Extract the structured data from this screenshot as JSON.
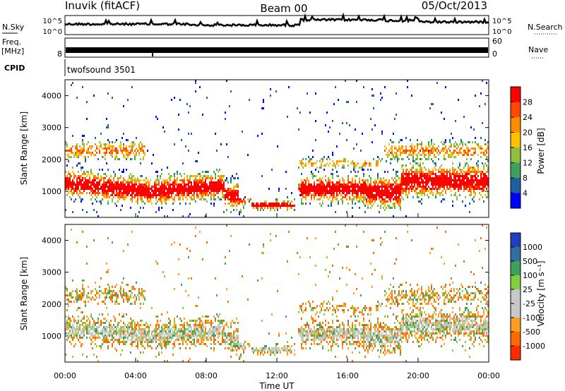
{
  "header": {
    "station": "Inuvik (fitACF)",
    "beam": "Beam 00",
    "date": "05/Oct/2013"
  },
  "top_panels": {
    "nsky": {
      "label": "N.Sky",
      "ticks": [
        "10^5",
        "10^0"
      ]
    },
    "nsearch": {
      "label": "N.Search",
      "ticks": [
        "10^5",
        "10^0"
      ]
    },
    "freq": {
      "label_line1": "Freq.",
      "label_line2": "[MHz]",
      "ticks": [
        "8"
      ]
    },
    "nave": {
      "label": "Nave",
      "ticks": [
        "60",
        "0"
      ]
    },
    "cpid": {
      "label": "CPID",
      "value": "twofsound 3501"
    }
  },
  "chart_data": [
    {
      "type": "heatmap",
      "name": "power",
      "ylabel": "Slant Range [km]",
      "xlabel": "",
      "ylim": [
        180,
        4500
      ],
      "yticks": [
        "1000",
        "2000",
        "3000",
        "4000"
      ],
      "colorbar": {
        "label": "Power [dB]",
        "ticks": [
          "28",
          "24",
          "20",
          "16",
          "12",
          "8",
          "4"
        ],
        "colors": [
          "#ff0000",
          "#ff4a00",
          "#ff8c00",
          "#ffc000",
          "#8fbf3f",
          "#3f9f5f",
          "#1f5f9f",
          "#0000ff"
        ]
      },
      "bands_km": [
        [
          600,
          1800
        ],
        [
          1700,
          2600
        ]
      ]
    },
    {
      "type": "heatmap",
      "name": "velocity",
      "ylabel": "Slant Range [km]",
      "xlabel": "Time UT",
      "ylim": [
        180,
        4500
      ],
      "yticks": [
        "1000",
        "2000",
        "3000",
        "4000"
      ],
      "xticks": [
        "00:00",
        "04:00",
        "08:00",
        "12:00",
        "16:00",
        "20:00",
        "00:00"
      ],
      "colorbar": {
        "label": "Velocity [m s⁻¹]",
        "ticks": [
          "1000",
          "500",
          "100",
          "25",
          "-25",
          "-100",
          "-500",
          "-1000"
        ],
        "colors": [
          "#1f3fbf",
          "#2f6f9f",
          "#3f9f5f",
          "#7fcf3f",
          "#c8c8c8",
          "#c8c8c8",
          "#ff9f1f",
          "#ff6a00",
          "#ff2a00"
        ]
      }
    }
  ]
}
